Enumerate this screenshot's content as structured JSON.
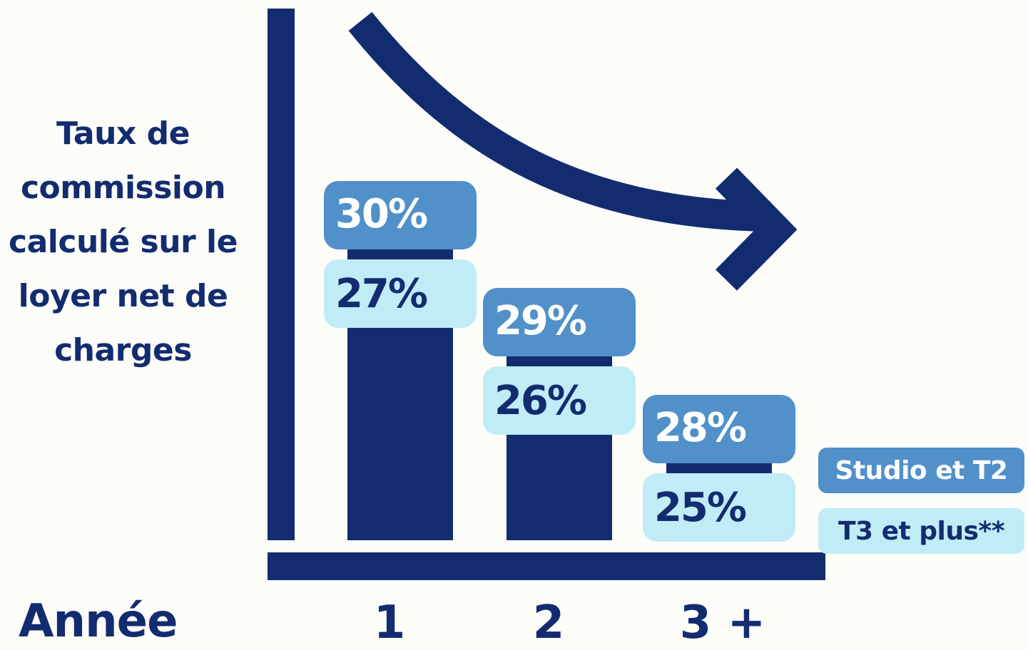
{
  "labels": {
    "ylabel": "Taux de commission calculé sur le loyer net de charges",
    "xlabel": "Année"
  },
  "colors": {
    "navy": "#132c70",
    "studio": "#5190c9",
    "t3": "#c0ecf6",
    "background": "#fcfcf8"
  },
  "legend": [
    {
      "label": "Studio et T2",
      "color": "#5190c9",
      "text_color": "#ffffff"
    },
    {
      "label": "T3 et plus**",
      "color": "#c0ecf6",
      "text_color": "#132c70"
    }
  ],
  "chart_data": {
    "type": "bar",
    "categories": [
      "1",
      "2",
      "3 +"
    ],
    "series": [
      {
        "name": "Studio et T2",
        "values": [
          30,
          29,
          28
        ],
        "labels": [
          "30%",
          "29%",
          "28%"
        ]
      },
      {
        "name": "T3 et plus**",
        "values": [
          27,
          26,
          25
        ],
        "labels": [
          "27%",
          "26%",
          "25%"
        ]
      }
    ],
    "ylabel": "Taux de commission calculé sur le loyer net de charges",
    "xlabel": "Année",
    "annotation": "decreasing-trend-arrow",
    "legend_position": "right"
  }
}
